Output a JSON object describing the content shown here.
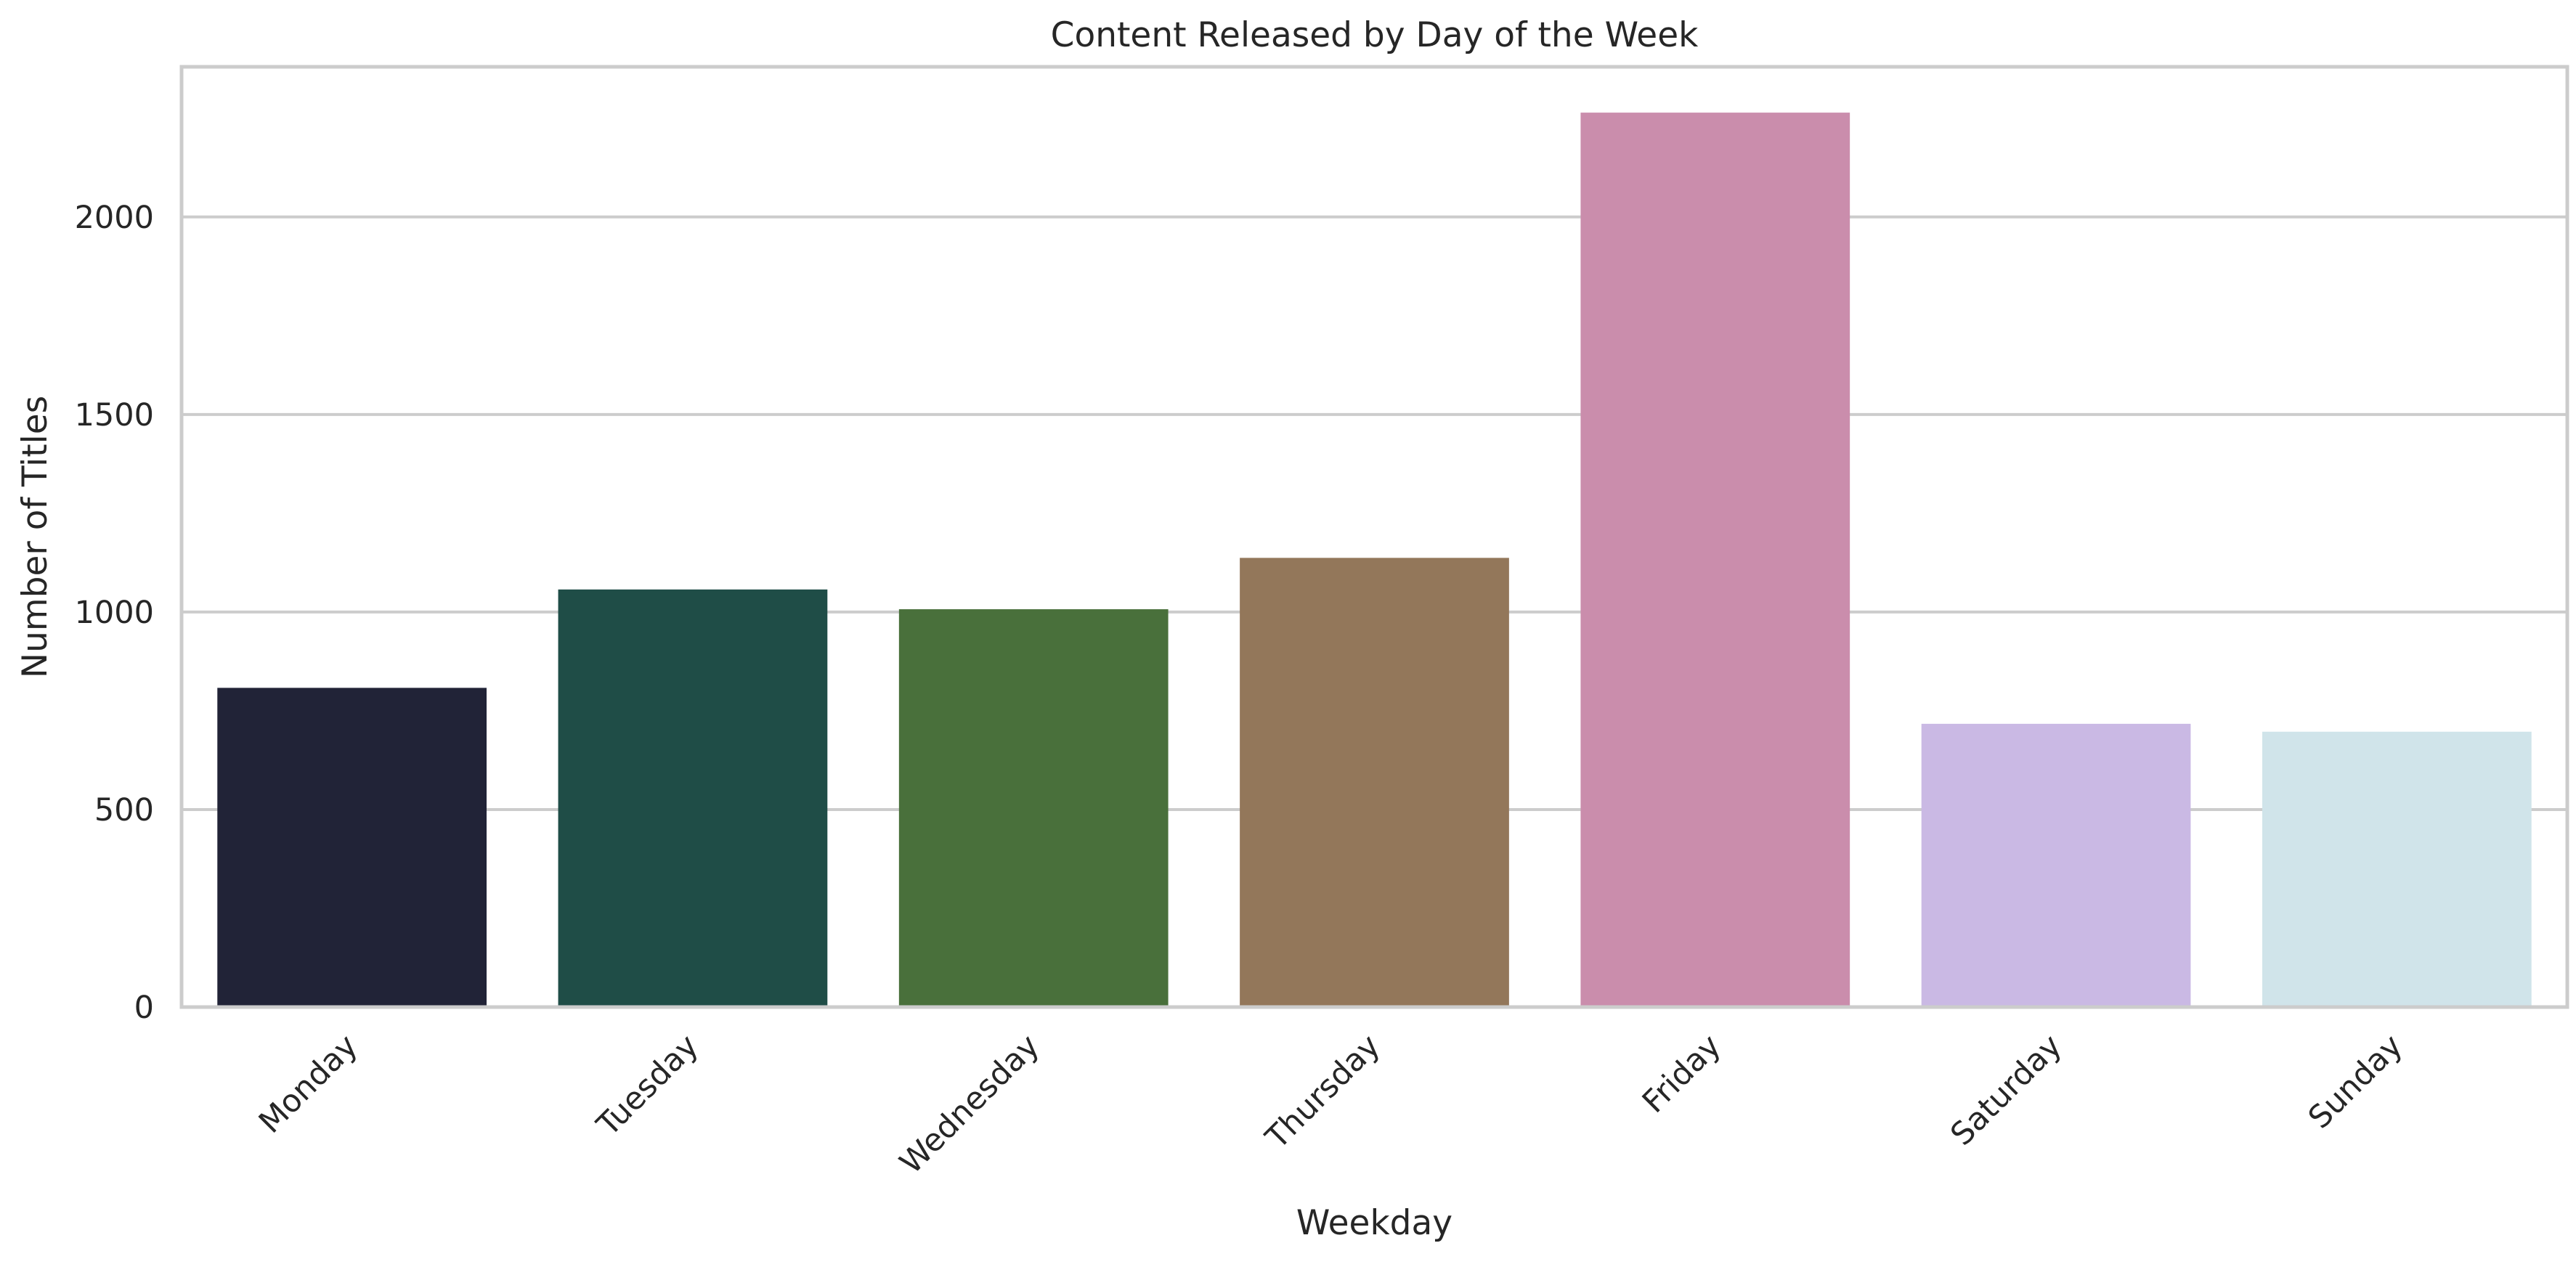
{
  "chart_data": {
    "type": "bar",
    "title": "Content Released by Day of the Week",
    "xlabel": "Weekday",
    "ylabel": "Number of Titles",
    "categories": [
      "Monday",
      "Tuesday",
      "Wednesday",
      "Thursday",
      "Friday",
      "Saturday",
      "Sunday"
    ],
    "values": [
      808,
      1057,
      1007,
      1137,
      2264,
      717,
      697
    ],
    "colors": [
      "#212337",
      "#1f4d47",
      "#49703b",
      "#93775a",
      "#ca8dac",
      "#cab9e4",
      "#d0e4ea"
    ],
    "ylim": [
      0,
      2380
    ],
    "yticks": [
      0,
      500,
      1000,
      1500,
      2000
    ],
    "ytick_labels": [
      "0",
      "500",
      "1000",
      "1500",
      "2000"
    ],
    "grid": "horizontal",
    "legend": "none",
    "xtick_rotation_deg": 45
  }
}
